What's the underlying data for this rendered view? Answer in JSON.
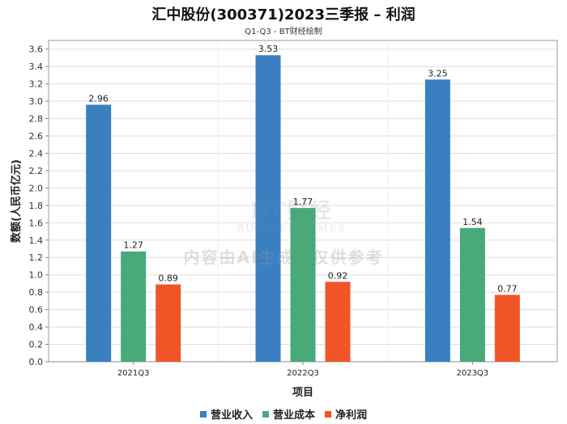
{
  "chart_data": {
    "type": "bar",
    "title": "汇中股份(300371)2023三季报 – 利润",
    "subtitle": "Q1-Q3 - BT财经绘制",
    "xlabel": "项目",
    "ylabel": "数额(人民币亿元)",
    "ylim": [
      0,
      3.7
    ],
    "yticks": [
      "0.0",
      "0.2",
      "0.4",
      "0.6",
      "0.8",
      "1.0",
      "1.2",
      "1.4",
      "1.6",
      "1.8",
      "2.0",
      "2.2",
      "2.4",
      "2.6",
      "2.8",
      "3.0",
      "3.2",
      "3.4",
      "3.6"
    ],
    "categories": [
      "2021Q3",
      "2022Q3",
      "2023Q3"
    ],
    "series": [
      {
        "name": "营业收入",
        "color": "#3a80c0",
        "values": [
          2.96,
          3.53,
          3.25
        ],
        "labels": [
          "2.96",
          "3.53",
          "3.25"
        ]
      },
      {
        "name": "营业成本",
        "color": "#47aa78",
        "values": [
          1.27,
          1.77,
          1.54
        ],
        "labels": [
          "1.27",
          "1.77",
          "1.54"
        ]
      },
      {
        "name": "净利润",
        "color": "#f05528",
        "values": [
          0.89,
          0.92,
          0.77
        ],
        "labels": [
          "0.89",
          "0.92",
          "0.77"
        ]
      }
    ],
    "grid": true,
    "legend": "bottom-center"
  },
  "watermark": {
    "brand": "BT财经",
    "brand_en": "BUSINESSTIMES",
    "note": "内容由AI生成，仅供参考"
  }
}
